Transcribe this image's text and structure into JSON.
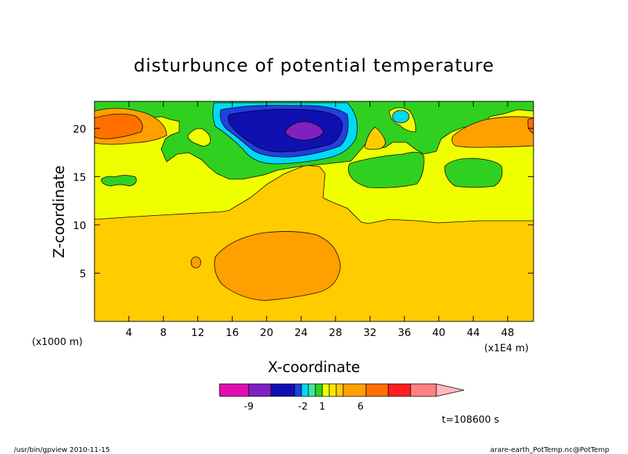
{
  "chart_data": {
    "type": "heatmap",
    "title": "disturbunce of potential temperature",
    "xlabel": "X-coordinate",
    "ylabel": "Z-coordinate",
    "x_unit_left": "(x1000 m)",
    "x_unit_right": "(x1E4 m)",
    "xticks": [
      4,
      8,
      12,
      16,
      20,
      24,
      28,
      32,
      36,
      40,
      44,
      48
    ],
    "yticks": [
      5,
      10,
      15,
      20
    ],
    "xlim": [
      0,
      51
    ],
    "ylim": [
      0,
      22.8
    ],
    "colorbar": {
      "tick_labels": [
        "-9",
        "-2",
        "1",
        "6"
      ],
      "colors": [
        "#e010b0",
        "#8020c0",
        "#1010b0",
        "#2040e0",
        "#00d8f8",
        "#40e8a0",
        "#30d020",
        "#f0ff00",
        "#ffe600",
        "#ffcc00",
        "#ffa000",
        "#ff7000",
        "#ff2020",
        "#ff8080",
        "#ffb8c0"
      ]
    },
    "time_label": "t=108600 s",
    "footer_left": "/usr/bin/gpview  2010-11-15",
    "footer_right": "arare-earth_PotTemp.nc@PotTemp",
    "regions": [
      {
        "level": "1 to 2 (yellow)",
        "x_range": [
          0,
          51
        ],
        "z_range": [
          10.7,
          22.8
        ]
      },
      {
        "level": "2 to 3 (gold)",
        "x_range": [
          0,
          51
        ],
        "z_range": [
          0,
          10.7
        ]
      },
      {
        "level": "3 to 4 (orange)",
        "x_center": 22.3,
        "z_center": 5.8,
        "extent": "x 14-28.5, z 2-9.4"
      },
      {
        "level": "-9 to -6 (purple)",
        "x_center": 25,
        "z_center": 19.8
      },
      {
        "level": "-6 to -4 (dark blue)",
        "x_center": 22.5,
        "z_center": 20
      },
      {
        "level": "4 to 5 (dark orange)",
        "x_center": 2.5,
        "z_center": 20.8
      },
      {
        "level": "3 to 4 (orange)",
        "x_center": 45.5,
        "z_center": 19.8
      }
    ]
  }
}
